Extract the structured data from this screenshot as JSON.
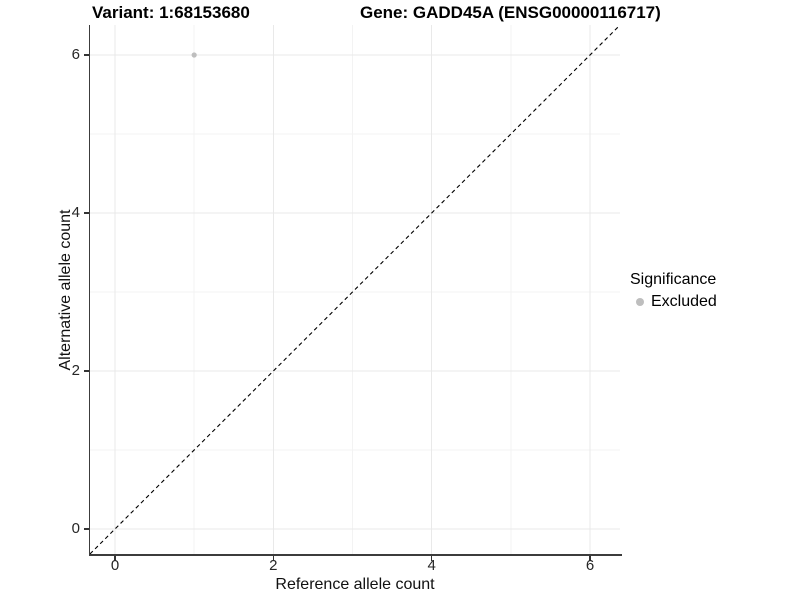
{
  "header": {
    "title_left": "Variant: 1:68153680",
    "title_right": "Gene: GADD45A (ENSG00000116717)"
  },
  "legend": {
    "title": "Significance",
    "items": [
      {
        "label": "Excluded",
        "color": "#bebebe",
        "marker": "circle-icon"
      }
    ]
  },
  "colors": {
    "point": "#bebebe",
    "axis_line": "#3c3c3c",
    "reference_line": "#000000",
    "grid_major": "#e9e9e9",
    "grid_minor": "#f3f3f3"
  },
  "chart_data": {
    "type": "scatter",
    "title_left": "Variant: 1:68153680",
    "title_right": "Gene: GADD45A (ENSG00000116717)",
    "xlabel": "Reference allele count",
    "ylabel": "Alternative allele count",
    "xlim": [
      -0.316,
      6.368
    ],
    "ylim": [
      -0.316,
      6.368
    ],
    "x_ticks": [
      0,
      2,
      4,
      6
    ],
    "y_ticks": [
      0,
      2,
      4,
      6
    ],
    "x_minor_breaks": [
      1,
      3,
      5
    ],
    "y_minor_breaks": [
      1,
      3,
      5
    ],
    "grid": "major+minor",
    "legend_position": "right",
    "series": [
      {
        "name": "Excluded",
        "color": "#bebebe",
        "points": [
          {
            "x": 1,
            "y": 6
          }
        ]
      }
    ],
    "reference_line": {
      "slope": 1,
      "intercept": 0,
      "style": "dashed",
      "color": "#000000"
    }
  }
}
